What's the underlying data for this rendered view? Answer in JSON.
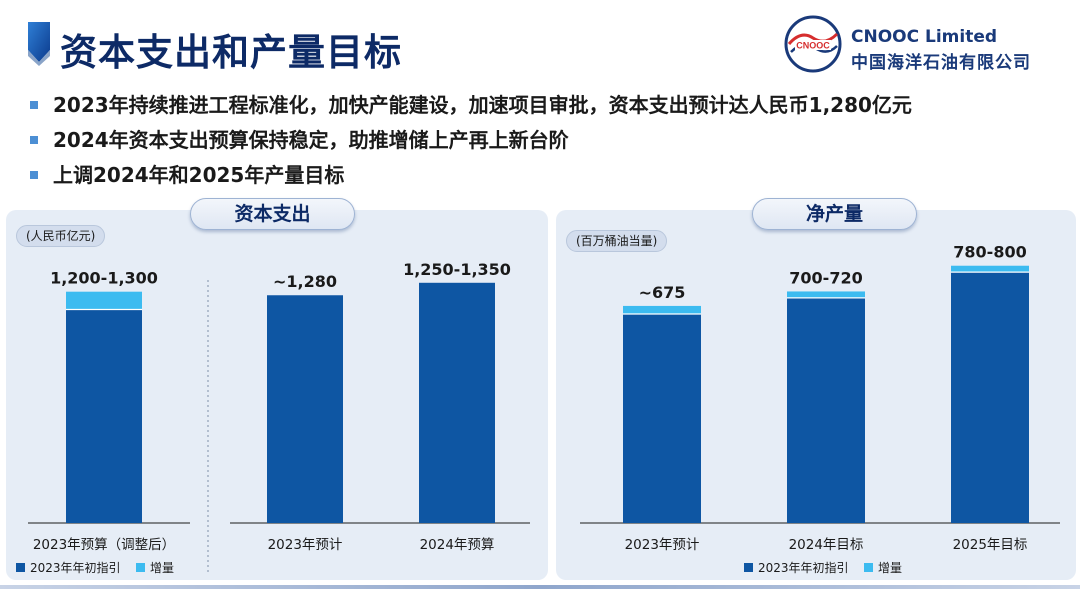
{
  "page_title": "资本支出和产量目标",
  "logo": {
    "en": "CNOOC Limited",
    "cn": "中国海洋石油有限公司",
    "mark_text": "CNOOC",
    "brand_color": "#1a3a7a",
    "accent_color": "#d62e2e"
  },
  "bullets": [
    "2023年持续推进工程标准化，加快产能建设，加速项目审批，资本支出预计达人民币1,280亿元",
    "2024年资本支出预算保持稳定，助推增储上产再上新台阶",
    "上调2024年和2025年产量目标"
  ],
  "colors": {
    "base": "#0e56a3",
    "increment": "#3cbbf0",
    "title": "#0d2a66",
    "bullet": "#4c8fd4"
  },
  "capex": {
    "title": "资本支出",
    "unit": "(人民币亿元)",
    "legend": {
      "base": "2023年年初指引",
      "increment": "增量"
    }
  },
  "production": {
    "title": "净产量",
    "unit": "(百万桶油当量)",
    "legend": {
      "base": "2023年年初指引",
      "increment": "增量"
    }
  },
  "chart_data": [
    {
      "type": "bar",
      "stacked": true,
      "title": "资本支出",
      "ylabel": "人民币亿元",
      "categories": [
        "2023年预算（调整后）"
      ],
      "series": [
        {
          "name": "2023年年初指引",
          "values": [
            1200
          ]
        },
        {
          "name": "增量",
          "values": [
            100
          ]
        }
      ],
      "labels": [
        "1,200-1,300"
      ],
      "ylim": [
        0,
        1450
      ]
    },
    {
      "type": "bar",
      "title": "资本支出",
      "ylabel": "人民币亿元",
      "categories": [
        "2023年预计",
        "2024年预算"
      ],
      "series": [
        {
          "name": "2023年年初指引",
          "values": [
            1280,
            1350
          ]
        }
      ],
      "labels": [
        "~1,280",
        "1,250-1,350"
      ],
      "ylim": [
        0,
        1450
      ]
    },
    {
      "type": "bar",
      "stacked": true,
      "title": "净产量",
      "ylabel": "百万桶油当量",
      "categories": [
        "2023年预计",
        "2024年目标",
        "2025年目标"
      ],
      "series": [
        {
          "name": "2023年年初指引",
          "values": [
            650,
            700,
            780
          ]
        },
        {
          "name": "增量",
          "values": [
            25,
            20,
            20
          ]
        }
      ],
      "labels": [
        "~675",
        "700-720",
        "780-800"
      ],
      "ylim": [
        0,
        880
      ]
    }
  ]
}
